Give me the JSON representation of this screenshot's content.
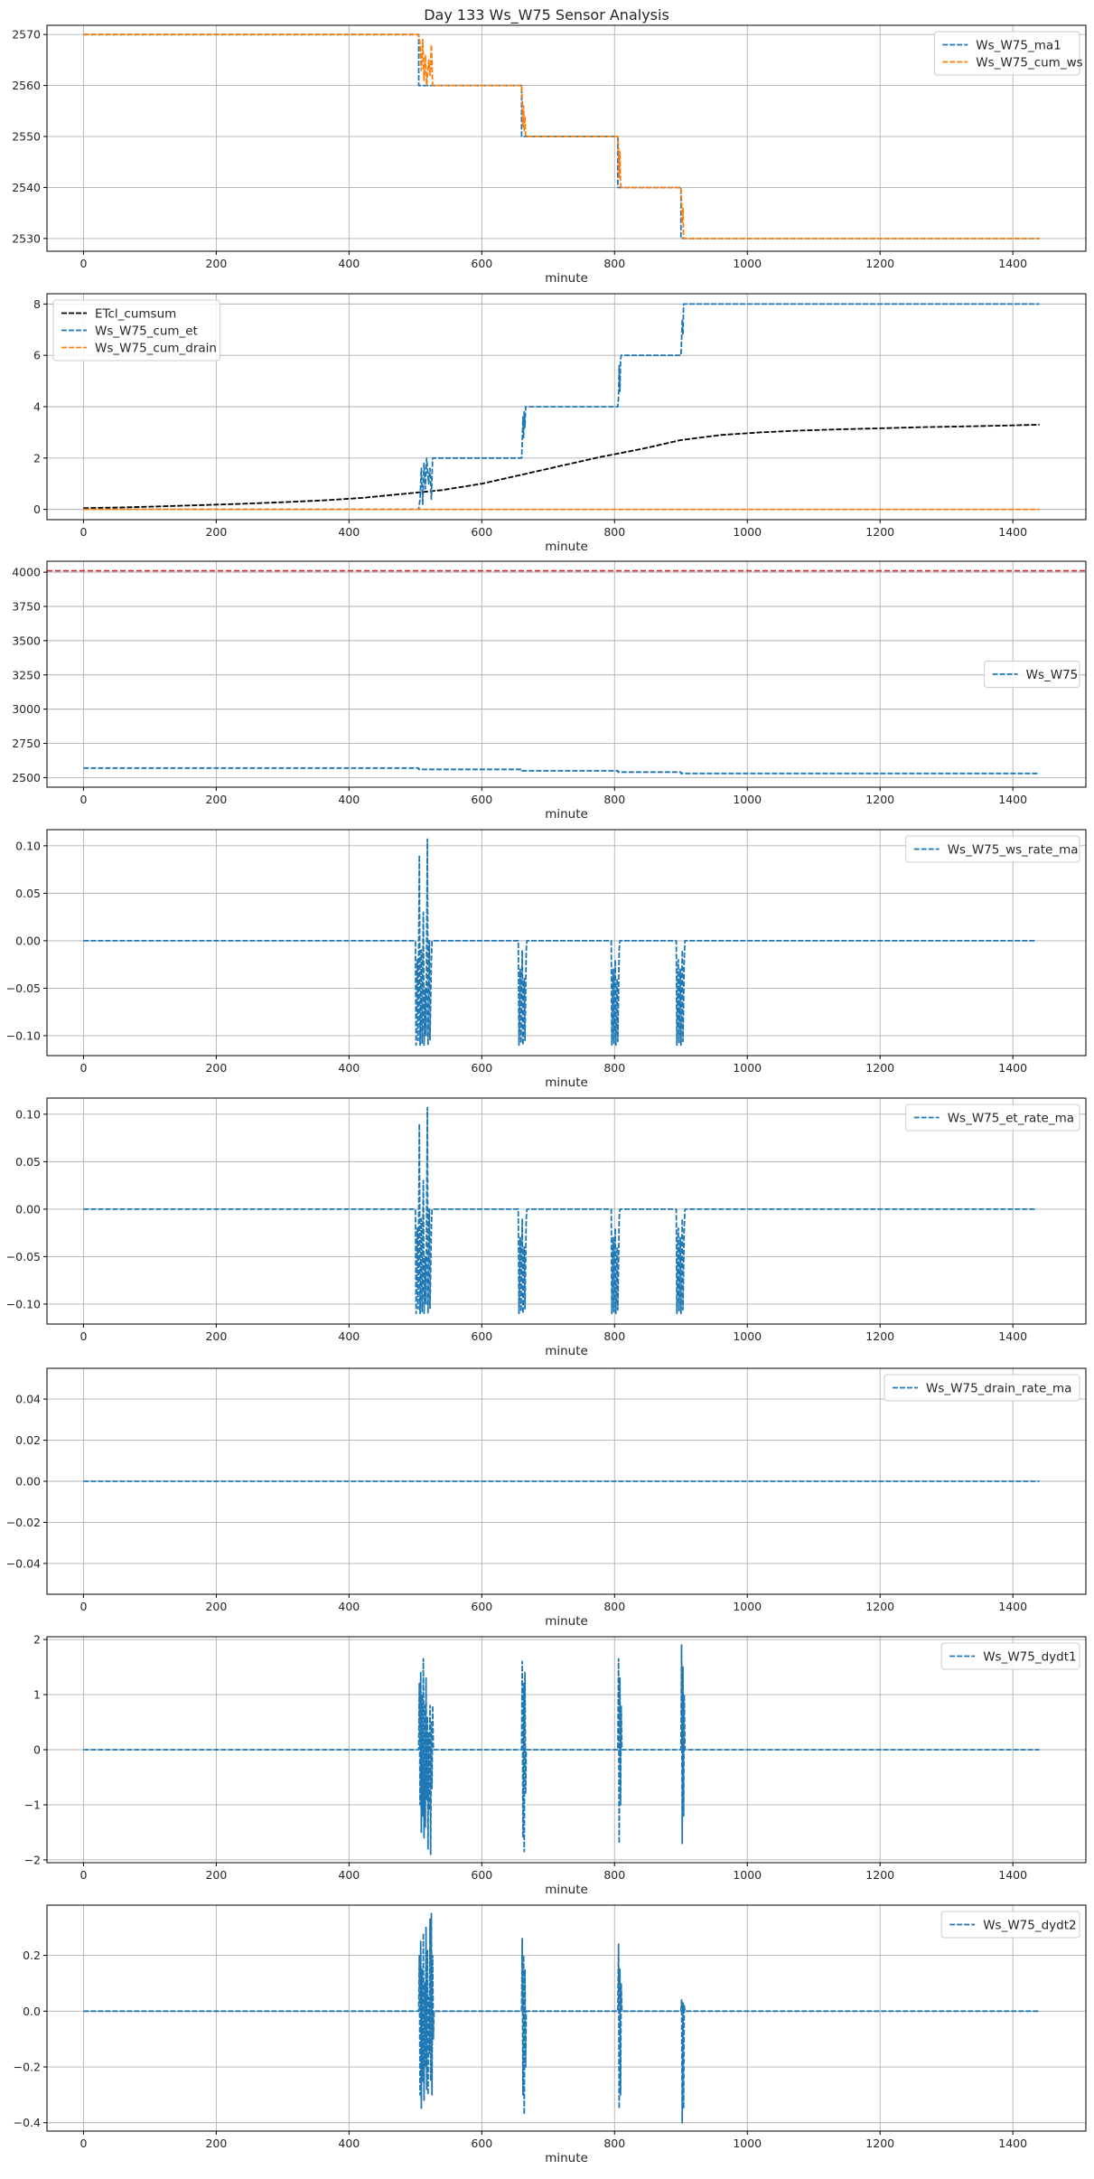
{
  "figure": {
    "title": "Day 133 Ws_W75 Sensor Analysis"
  },
  "colors": {
    "blue": "#1f77b4",
    "orange": "#ff7f0e",
    "black": "#000000",
    "red": "#d62728",
    "grid": "#b0b0b0"
  },
  "chart_data": [
    {
      "type": "line",
      "xlabel": "minute",
      "xlim": [
        -55,
        1510
      ],
      "xticks": [
        0,
        200,
        400,
        600,
        800,
        1000,
        1200,
        1400
      ],
      "ylim": [
        2527.5,
        2571.8
      ],
      "yticks": [
        2530,
        2540,
        2550,
        2560,
        2570
      ],
      "grid": true,
      "legend_position": "upper-right",
      "series": [
        {
          "name": "Ws_W75_ma1",
          "color": "blue",
          "style": "dashed",
          "x": [
            0,
            505,
            505,
            660,
            660,
            805,
            805,
            900,
            900,
            1440
          ],
          "y": [
            2570,
            2570,
            2560,
            2560,
            2550,
            2550,
            2540,
            2540,
            2530,
            2530
          ]
        },
        {
          "name": "Ws_W75_cum_ws",
          "color": "orange",
          "style": "dashed",
          "x": [
            0,
            505,
            507,
            509,
            511,
            513,
            515,
            517,
            520,
            522,
            524,
            526,
            660,
            661,
            662,
            663,
            664,
            665,
            666,
            805,
            806,
            807,
            808,
            809,
            810,
            900,
            901,
            902,
            903,
            904,
            1440
          ],
          "y": [
            2570,
            2570,
            2568,
            2563,
            2569,
            2561,
            2566,
            2560,
            2565,
            2562,
            2568,
            2560,
            2560,
            2557,
            2552,
            2556,
            2551,
            2554,
            2550,
            2550,
            2548,
            2542,
            2547,
            2541,
            2540,
            2540,
            2537,
            2533,
            2536,
            2530,
            2530
          ]
        }
      ]
    },
    {
      "type": "line",
      "xlabel": "minute",
      "xlim": [
        -55,
        1510
      ],
      "xticks": [
        0,
        200,
        400,
        600,
        800,
        1000,
        1200,
        1400
      ],
      "ylim": [
        -0.4,
        8.4
      ],
      "yticks": [
        0,
        2,
        4,
        6,
        8
      ],
      "grid": true,
      "legend_position": "upper-left",
      "series": [
        {
          "name": "ETcl_cumsum",
          "color": "black",
          "style": "dashed",
          "x": [
            0,
            60,
            120,
            180,
            240,
            300,
            360,
            420,
            480,
            540,
            600,
            660,
            720,
            780,
            840,
            900,
            960,
            1020,
            1080,
            1140,
            1200,
            1260,
            1320,
            1380,
            1440
          ],
          "y": [
            0.05,
            0.08,
            0.12,
            0.17,
            0.22,
            0.28,
            0.35,
            0.45,
            0.6,
            0.75,
            1.0,
            1.35,
            1.7,
            2.05,
            2.35,
            2.7,
            2.9,
            3.0,
            3.07,
            3.12,
            3.16,
            3.2,
            3.23,
            3.26,
            3.3
          ]
        },
        {
          "name": "Ws_W75_cum_et",
          "color": "blue",
          "style": "dashed",
          "x": [
            0,
            505,
            507,
            509,
            511,
            513,
            515,
            517,
            520,
            522,
            524,
            526,
            660,
            661,
            662,
            663,
            664,
            665,
            666,
            805,
            806,
            807,
            808,
            809,
            810,
            900,
            901,
            902,
            903,
            904,
            1440
          ],
          "y": [
            0,
            0,
            0.4,
            1.6,
            0.2,
            1.8,
            0.8,
            2.0,
            1.0,
            1.6,
            0.4,
            2.0,
            2.0,
            2.6,
            3.6,
            2.8,
            3.8,
            3.2,
            4.0,
            4.0,
            4.4,
            5.6,
            4.6,
            5.8,
            6.0,
            6.0,
            6.6,
            7.4,
            6.8,
            8.0,
            8.0
          ]
        },
        {
          "name": "Ws_W75_cum_drain",
          "color": "orange",
          "style": "dashed",
          "x": [
            0,
            1440
          ],
          "y": [
            0,
            0
          ]
        }
      ]
    },
    {
      "type": "line",
      "xlabel": "minute",
      "xlim": [
        -55,
        1510
      ],
      "xticks": [
        0,
        200,
        400,
        600,
        800,
        1000,
        1200,
        1400
      ],
      "ylim": [
        2430,
        4080
      ],
      "yticks": [
        2500,
        2750,
        3000,
        3250,
        3500,
        3750,
        4000
      ],
      "grid": true,
      "legend_position": "center-right",
      "reference_line": {
        "y": 4010,
        "color": "red",
        "style": "dashed"
      },
      "series": [
        {
          "name": "Ws_W75",
          "color": "blue",
          "style": "dashed",
          "x": [
            0,
            505,
            505,
            660,
            660,
            805,
            805,
            900,
            900,
            1440
          ],
          "y": [
            2570,
            2570,
            2560,
            2560,
            2550,
            2550,
            2540,
            2540,
            2530,
            2530
          ]
        }
      ]
    },
    {
      "type": "line",
      "xlabel": "minute",
      "xlim": [
        -55,
        1510
      ],
      "xticks": [
        0,
        200,
        400,
        600,
        800,
        1000,
        1200,
        1400
      ],
      "ylim": [
        -0.121,
        0.117
      ],
      "yticks": [
        -0.1,
        -0.05,
        0.0,
        0.05,
        0.1
      ],
      "grid": true,
      "legend_position": "upper-right",
      "series": [
        {
          "name": "Ws_W75_ws_rate_ma",
          "color": "blue",
          "style": "dashed",
          "x": [
            0,
            500,
            501,
            503,
            504,
            506,
            507,
            509,
            510,
            512,
            513,
            515,
            516,
            518,
            519,
            521,
            522,
            524,
            525,
            655,
            656,
            658,
            659,
            661,
            662,
            664,
            665,
            667,
            668,
            795,
            796,
            798,
            799,
            801,
            802,
            804,
            805,
            807,
            808,
            893,
            894,
            896,
            897,
            899,
            900,
            902,
            903,
            905,
            906,
            1435
          ],
          "y": [
            0,
            0,
            -0.11,
            -0.02,
            -0.105,
            0.09,
            -0.11,
            -0.01,
            -0.108,
            0.03,
            -0.11,
            -0.05,
            -0.1,
            0.107,
            -0.11,
            0.0,
            -0.105,
            -0.02,
            0,
            0,
            -0.11,
            -0.03,
            -0.108,
            -0.01,
            -0.11,
            -0.04,
            -0.105,
            -0.01,
            0,
            0,
            -0.11,
            -0.03,
            -0.108,
            -0.02,
            -0.11,
            -0.04,
            -0.106,
            -0.01,
            0,
            0,
            -0.11,
            -0.02,
            -0.108,
            -0.03,
            -0.11,
            -0.01,
            -0.106,
            -0.02,
            0,
            0
          ]
        }
      ]
    },
    {
      "type": "line",
      "xlabel": "minute",
      "xlim": [
        -55,
        1510
      ],
      "xticks": [
        0,
        200,
        400,
        600,
        800,
        1000,
        1200,
        1400
      ],
      "ylim": [
        -0.121,
        0.117
      ],
      "yticks": [
        -0.1,
        -0.05,
        0.0,
        0.05,
        0.1
      ],
      "grid": true,
      "legend_position": "upper-right",
      "series": [
        {
          "name": "Ws_W75_et_rate_ma",
          "color": "blue",
          "style": "dashed",
          "x": [
            0,
            500,
            501,
            503,
            504,
            506,
            507,
            509,
            510,
            512,
            513,
            515,
            516,
            518,
            519,
            521,
            522,
            524,
            525,
            655,
            656,
            658,
            659,
            661,
            662,
            664,
            665,
            667,
            668,
            795,
            796,
            798,
            799,
            801,
            802,
            804,
            805,
            807,
            808,
            893,
            894,
            896,
            897,
            899,
            900,
            902,
            903,
            905,
            906,
            1435
          ],
          "y": [
            0,
            0,
            -0.11,
            -0.02,
            -0.105,
            0.09,
            -0.11,
            -0.01,
            -0.108,
            0.03,
            -0.11,
            -0.05,
            -0.1,
            0.107,
            -0.11,
            0.0,
            -0.105,
            -0.02,
            0,
            0,
            -0.11,
            -0.03,
            -0.108,
            -0.01,
            -0.11,
            -0.04,
            -0.105,
            -0.01,
            0,
            0,
            -0.11,
            -0.03,
            -0.108,
            -0.02,
            -0.11,
            -0.04,
            -0.106,
            -0.01,
            0,
            0,
            -0.11,
            -0.02,
            -0.108,
            -0.03,
            -0.11,
            -0.01,
            -0.106,
            -0.02,
            0,
            0
          ]
        }
      ]
    },
    {
      "type": "line",
      "xlabel": "minute",
      "xlim": [
        -55,
        1510
      ],
      "xticks": [
        0,
        200,
        400,
        600,
        800,
        1000,
        1200,
        1400
      ],
      "ylim": [
        -0.055,
        0.055
      ],
      "yticks": [
        -0.04,
        -0.02,
        0.0,
        0.02,
        0.04
      ],
      "grid": true,
      "legend_position": "upper-right",
      "series": [
        {
          "name": "Ws_W75_drain_rate_ma",
          "color": "blue",
          "style": "dashed",
          "x": [
            0,
            1440
          ],
          "y": [
            0,
            0
          ]
        }
      ]
    },
    {
      "type": "line",
      "xlabel": "minute",
      "xlim": [
        -55,
        1510
      ],
      "xticks": [
        0,
        200,
        400,
        600,
        800,
        1000,
        1200,
        1400
      ],
      "ylim": [
        -2.05,
        2.05
      ],
      "yticks": [
        -2,
        -1,
        0,
        1,
        2
      ],
      "grid": true,
      "legend_position": "upper-right",
      "series": [
        {
          "name": "Ws_W75_dydt1",
          "color": "blue",
          "style": "dashed",
          "x": [
            0,
            505,
            506,
            507,
            508,
            509,
            510,
            511,
            512,
            513,
            514,
            515,
            516,
            517,
            518,
            519,
            520,
            521,
            522,
            523,
            524,
            525,
            526,
            527,
            660,
            661,
            662,
            663,
            664,
            665,
            666,
            667,
            805,
            806,
            807,
            808,
            809,
            810,
            811,
            900,
            901,
            902,
            903,
            904,
            905,
            906,
            1440
          ],
          "y": [
            0,
            0,
            1.2,
            -1.0,
            1.4,
            -1.5,
            1.0,
            -1.2,
            1.65,
            -1.6,
            0.8,
            -1.4,
            1.3,
            -0.9,
            0.6,
            -1.8,
            0.3,
            -1.1,
            0.8,
            -1.9,
            0.5,
            -0.7,
            0.8,
            0,
            0,
            1.6,
            -1.6,
            1.2,
            -1.85,
            1.4,
            -0.8,
            0,
            0,
            1.65,
            -1.7,
            1.3,
            -1.0,
            0.8,
            0,
            0,
            1.9,
            -1.7,
            1.5,
            -1.2,
            1.0,
            0,
            0
          ]
        }
      ]
    },
    {
      "type": "line",
      "xlabel": "minute",
      "xlim": [
        -55,
        1510
      ],
      "xticks": [
        0,
        200,
        400,
        600,
        800,
        1000,
        1200,
        1400
      ],
      "ylim": [
        -0.43,
        0.38
      ],
      "yticks": [
        -0.4,
        -0.2,
        0.0,
        0.2
      ],
      "grid": true,
      "legend_position": "upper-right",
      "series": [
        {
          "name": "Ws_W75_dydt2",
          "color": "blue",
          "style": "dashed",
          "x": [
            0,
            505,
            506,
            507,
            508,
            509,
            510,
            511,
            512,
            513,
            514,
            515,
            516,
            517,
            518,
            519,
            520,
            521,
            522,
            523,
            524,
            525,
            526,
            527,
            528,
            660,
            661,
            662,
            663,
            664,
            665,
            666,
            667,
            805,
            806,
            807,
            808,
            809,
            810,
            811,
            900,
            901,
            902,
            903,
            904,
            905,
            906,
            1440
          ],
          "y": [
            0,
            0,
            0.2,
            -0.3,
            0.25,
            -0.35,
            0.15,
            -0.25,
            0.28,
            -0.32,
            0.1,
            -0.2,
            0.3,
            -0.28,
            0.22,
            -0.3,
            0.05,
            -0.15,
            0.33,
            -0.25,
            0.35,
            -0.3,
            0.2,
            -0.1,
            0,
            0,
            0.26,
            -0.3,
            0.2,
            -0.37,
            0.15,
            -0.2,
            0,
            0,
            0.24,
            -0.35,
            0.15,
            -0.3,
            0.1,
            0,
            0,
            0.04,
            -0.4,
            0.03,
            -0.35,
            0.02,
            0,
            0
          ]
        }
      ]
    }
  ]
}
